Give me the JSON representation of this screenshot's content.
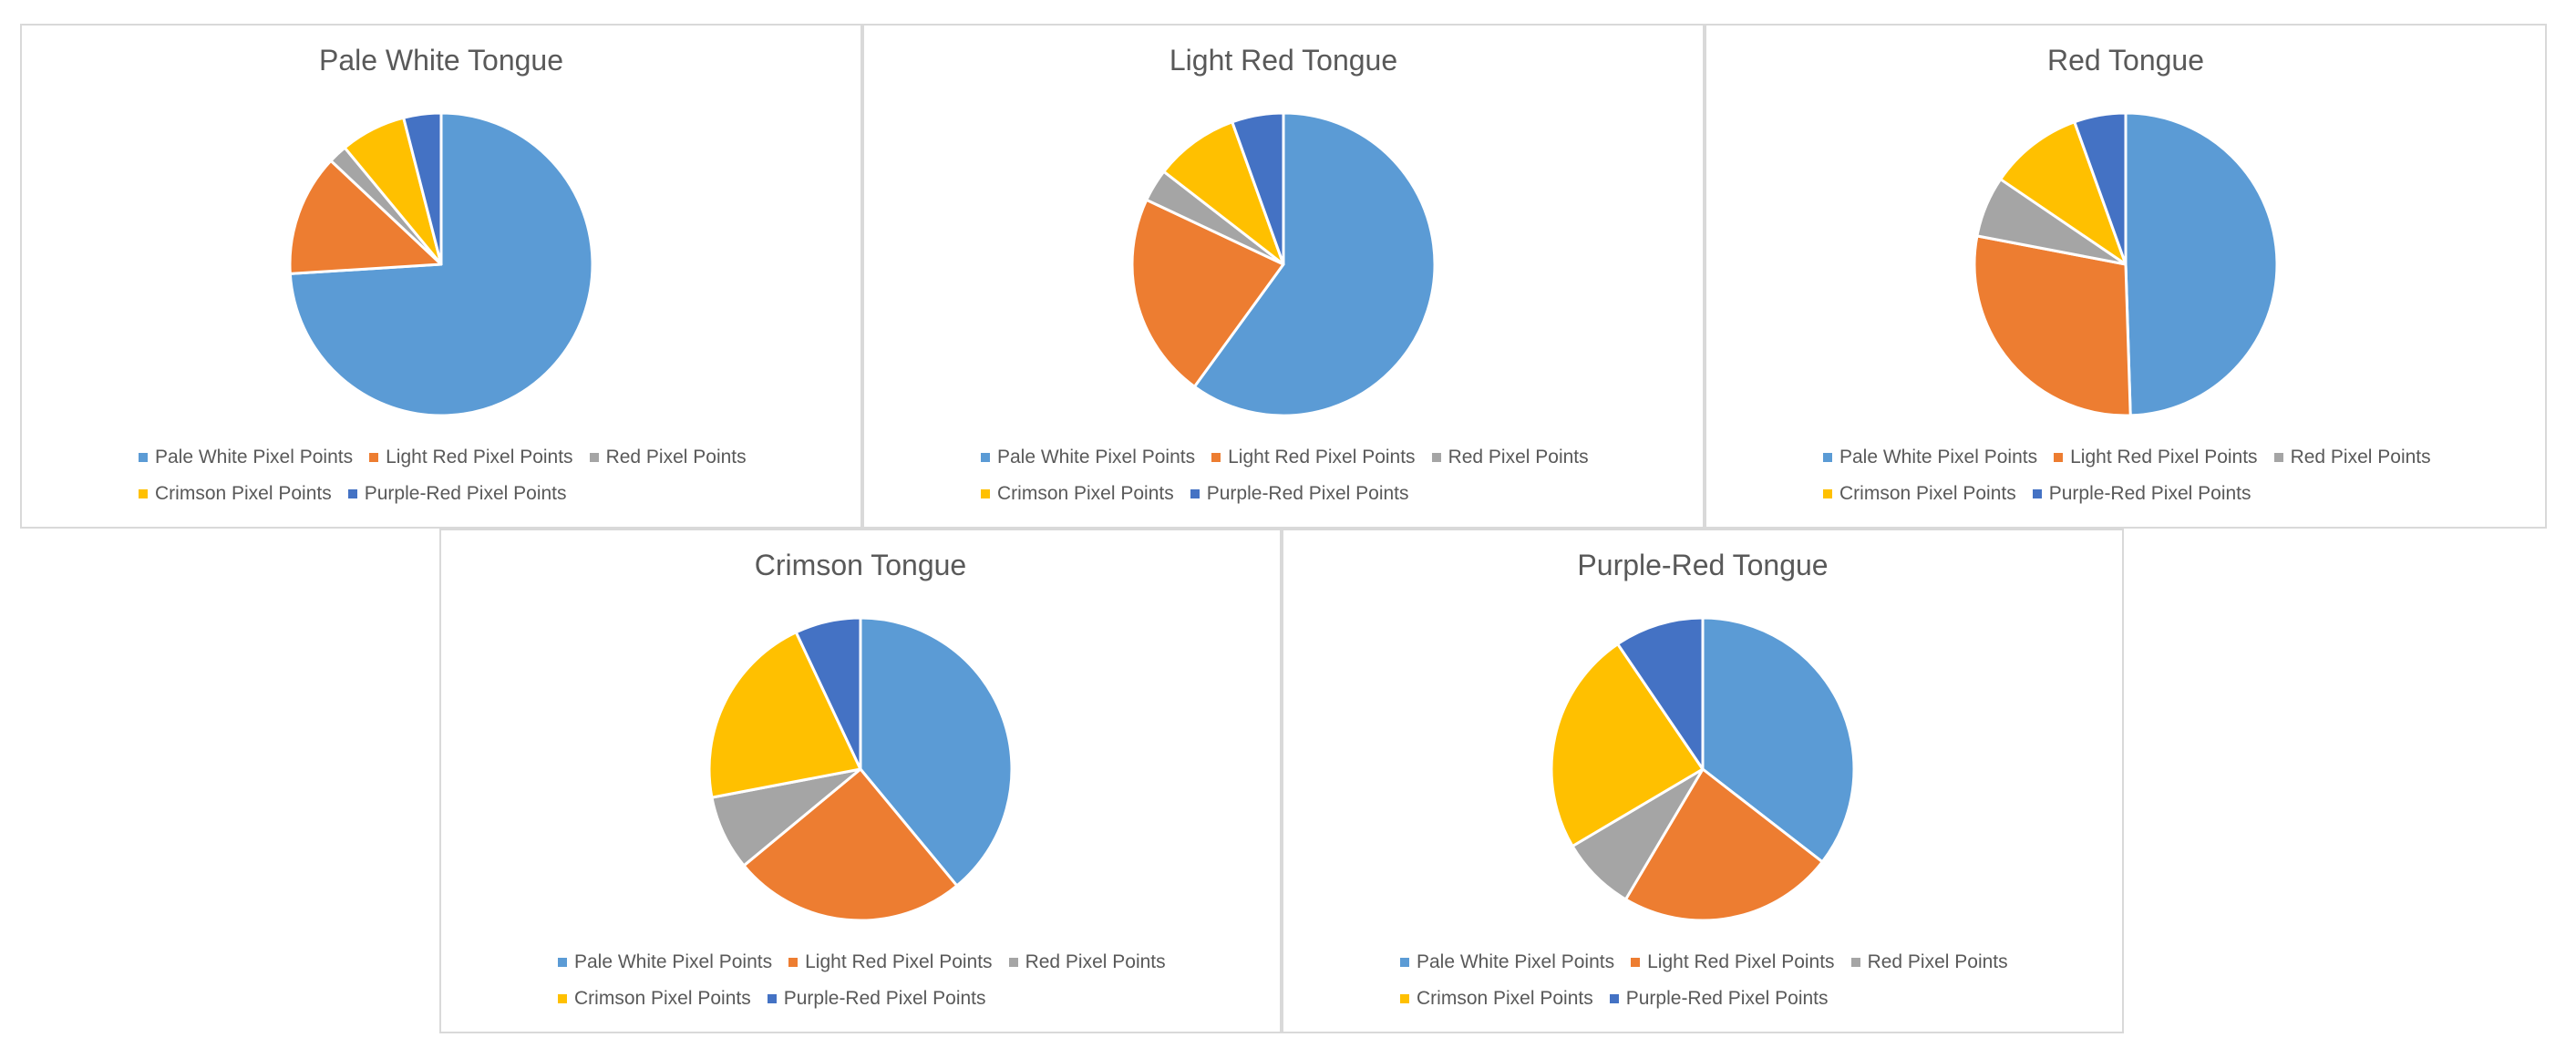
{
  "chart_data": [
    {
      "type": "pie",
      "title": "Pale White Tongue",
      "categories": [
        "Pale White Pixel Points",
        "Light Red Pixel Points",
        "Red Pixel Points",
        "Crimson Pixel Points",
        "Purple-Red Pixel Points"
      ],
      "values": [
        74,
        13,
        2,
        7,
        4
      ],
      "colors": [
        "#5B9BD5",
        "#ED7D31",
        "#A5A5A5",
        "#FFC000",
        "#4472C4"
      ]
    },
    {
      "type": "pie",
      "title": "Light Red Tongue",
      "categories": [
        "Pale White Pixel Points",
        "Light Red Pixel Points",
        "Red Pixel Points",
        "Crimson Pixel Points",
        "Purple-Red Pixel Points"
      ],
      "values": [
        60,
        22,
        3.5,
        9,
        5.5
      ],
      "colors": [
        "#5B9BD5",
        "#ED7D31",
        "#A5A5A5",
        "#FFC000",
        "#4472C4"
      ]
    },
    {
      "type": "pie",
      "title": "Red Tongue",
      "categories": [
        "Pale White Pixel Points",
        "Light Red Pixel Points",
        "Red Pixel Points",
        "Crimson Pixel Points",
        "Purple-Red Pixel Points"
      ],
      "values": [
        49.5,
        28.5,
        6.5,
        10,
        5.5
      ],
      "colors": [
        "#5B9BD5",
        "#ED7D31",
        "#A5A5A5",
        "#FFC000",
        "#4472C4"
      ]
    },
    {
      "type": "pie",
      "title": "Crimson Tongue",
      "categories": [
        "Pale White Pixel Points",
        "Light Red Pixel Points",
        "Red Pixel Points",
        "Crimson Pixel Points",
        "Purple-Red Pixel Points"
      ],
      "values": [
        39,
        25,
        8,
        21,
        7
      ],
      "colors": [
        "#5B9BD5",
        "#ED7D31",
        "#A5A5A5",
        "#FFC000",
        "#4472C4"
      ]
    },
    {
      "type": "pie",
      "title": "Purple-Red Tongue",
      "categories": [
        "Pale White Pixel Points",
        "Light Red Pixel Points",
        "Red Pixel Points",
        "Crimson Pixel Points",
        "Purple-Red Pixel Points"
      ],
      "values": [
        35.5,
        23,
        8,
        24,
        9.5
      ],
      "colors": [
        "#5B9BD5",
        "#ED7D31",
        "#A5A5A5",
        "#FFC000",
        "#4472C4"
      ]
    }
  ]
}
